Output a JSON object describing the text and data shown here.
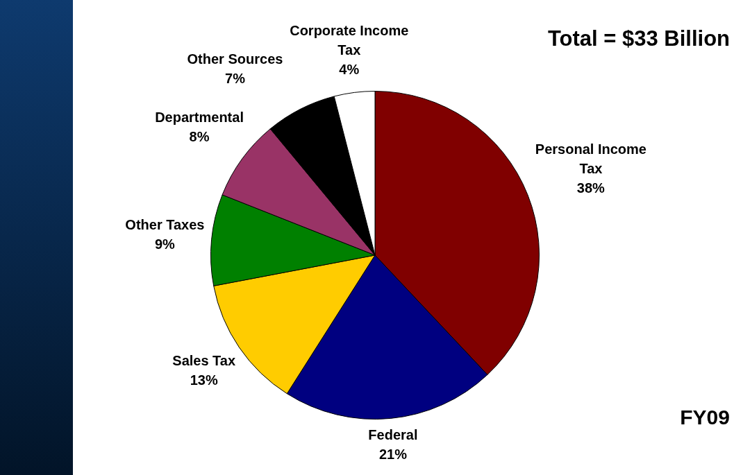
{
  "chart_data": {
    "type": "pie",
    "categories": [
      "Personal Income Tax",
      "Federal",
      "Sales Tax",
      "Other Taxes",
      "Departmental",
      "Other Sources",
      "Corporate Income Tax"
    ],
    "values": [
      38,
      21,
      13,
      9,
      8,
      7,
      4
    ],
    "colors": [
      "#800000",
      "#000080",
      "#ffcc00",
      "#008000",
      "#993366",
      "#000000",
      "#ffffff"
    ],
    "value_labels": [
      "38%",
      "21%",
      "13%",
      "9%",
      "8%",
      "7%",
      "4%"
    ],
    "legend": false,
    "annotations": [
      "Total = $33 Billion",
      "FY09"
    ]
  }
}
